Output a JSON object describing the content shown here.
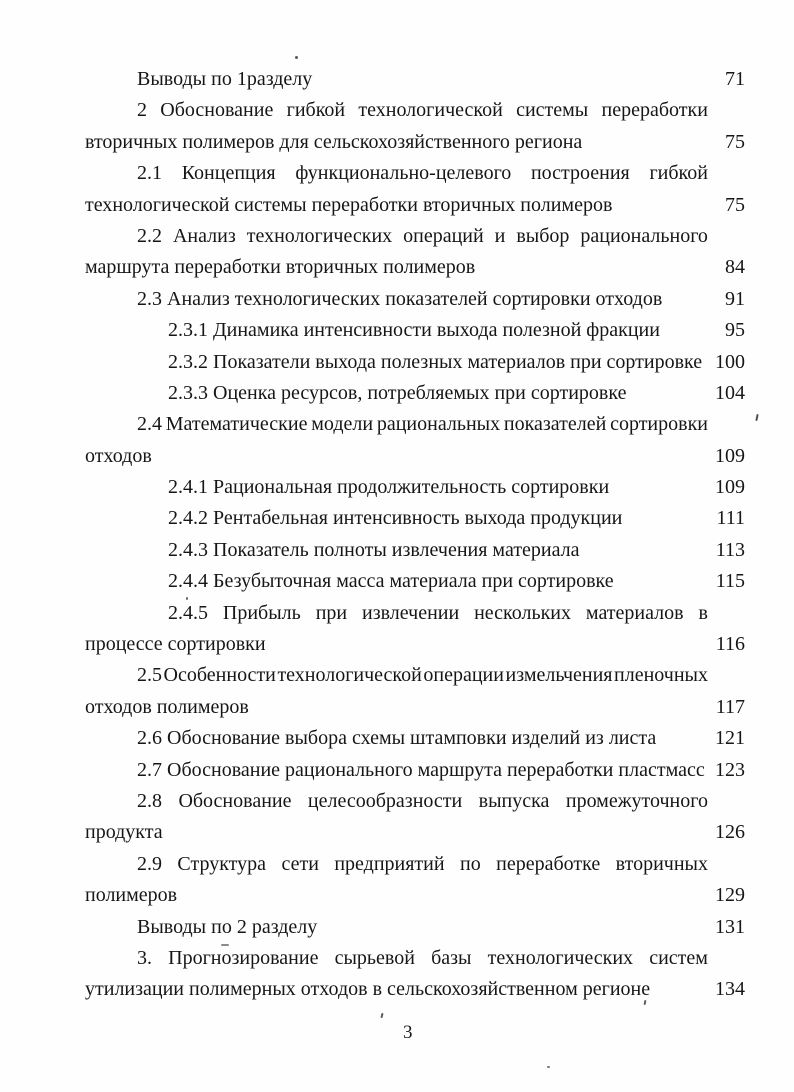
{
  "page": {
    "number": "3"
  },
  "toc": {
    "lines": [
      {
        "indent": "entry",
        "justify": false,
        "text": "Выводы по 1разделу",
        "page": "71"
      },
      {
        "indent": "entry",
        "justify": true,
        "text": "2 Обоснование гибкой технологической системы переработки",
        "page": null
      },
      {
        "indent": "cont",
        "justify": false,
        "text": "вторичных полимеров для сельскохозяйственного региона",
        "page": "75"
      },
      {
        "indent": "entry",
        "justify": true,
        "text": "2.1 Концепция функционально-целевого построения гибкой",
        "page": null
      },
      {
        "indent": "cont",
        "justify": false,
        "text": "технологической системы переработки вторичных полимеров",
        "page": "75"
      },
      {
        "indent": "entry",
        "justify": true,
        "text": "2.2 Анализ технологических операций и выбор рационального",
        "page": null
      },
      {
        "indent": "cont",
        "justify": false,
        "text": "маршрута переработки вторичных полимеров",
        "page": "84"
      },
      {
        "indent": "entry",
        "justify": false,
        "text": "2.3 Анализ технологических показателей сортировки отходов",
        "page": "91"
      },
      {
        "indent": "sub",
        "justify": false,
        "text": "2.3.1 Динамика интенсивности выхода полезной фракции",
        "page": "95"
      },
      {
        "indent": "sub",
        "justify": false,
        "text": "2.3.2 Показатели выхода полезных материалов при сортировке",
        "page": "100"
      },
      {
        "indent": "sub",
        "justify": false,
        "text": "2.3.3 Оценка ресурсов, потребляемых при сортировке",
        "page": "104"
      },
      {
        "indent": "entry",
        "justify": true,
        "text": "2.4 Математические модели рациональных показателей сортировки",
        "page": null
      },
      {
        "indent": "cont",
        "justify": false,
        "text": "отходов",
        "page": "109"
      },
      {
        "indent": "sub",
        "justify": false,
        "text": "2.4.1 Рациональная продолжительность сортировки",
        "page": "109"
      },
      {
        "indent": "sub",
        "justify": false,
        "text": "2.4.2 Рентабельная интенсивность выхода продукции",
        "page": "111"
      },
      {
        "indent": "sub",
        "justify": false,
        "text": "2.4.3 Показатель полноты извлечения материала",
        "page": "113"
      },
      {
        "indent": "sub",
        "justify": false,
        "text": "2.4.4 Безубыточная масса материала при сортировке",
        "page": "115"
      },
      {
        "indent": "sub",
        "justify": true,
        "text": "2.4.5 Прибыль при извлечении нескольких материалов в",
        "page": null
      },
      {
        "indent": "cont",
        "justify": false,
        "text": "процессе сортировки",
        "page": "116"
      },
      {
        "indent": "entry",
        "justify": true,
        "text": "2.5 Особенности технологической операции измельчения пленочных",
        "page": null
      },
      {
        "indent": "cont",
        "justify": false,
        "text": "отходов полимеров",
        "page": "117"
      },
      {
        "indent": "entry",
        "justify": false,
        "text": "2.6 Обоснование выбора схемы штамповки изделий из листа",
        "page": "121"
      },
      {
        "indent": "entry",
        "justify": false,
        "text": "2.7 Обоснование рационального маршрута переработки пластмасс",
        "page": "123"
      },
      {
        "indent": "entry",
        "justify": true,
        "text": "2.8 Обоснование целесообразности выпуска промежуточного",
        "page": null
      },
      {
        "indent": "cont",
        "justify": false,
        "text": "продукта",
        "page": "126"
      },
      {
        "indent": "entry",
        "justify": true,
        "text": "2.9 Структура сети предприятий по переработке вторичных",
        "page": null
      },
      {
        "indent": "cont",
        "justify": false,
        "text": "полимеров",
        "page": "129"
      },
      {
        "indent": "entry",
        "justify": false,
        "text": "Выводы по 2 разделу",
        "page": "131"
      },
      {
        "indent": "entry",
        "justify": true,
        "text": "3. Прогнозирование сырьевой базы технологических систем",
        "page": null
      },
      {
        "indent": "cont",
        "justify": false,
        "text": "утилизации полимерных отходов в сельскохозяйственном регионе",
        "page": "134"
      }
    ]
  }
}
